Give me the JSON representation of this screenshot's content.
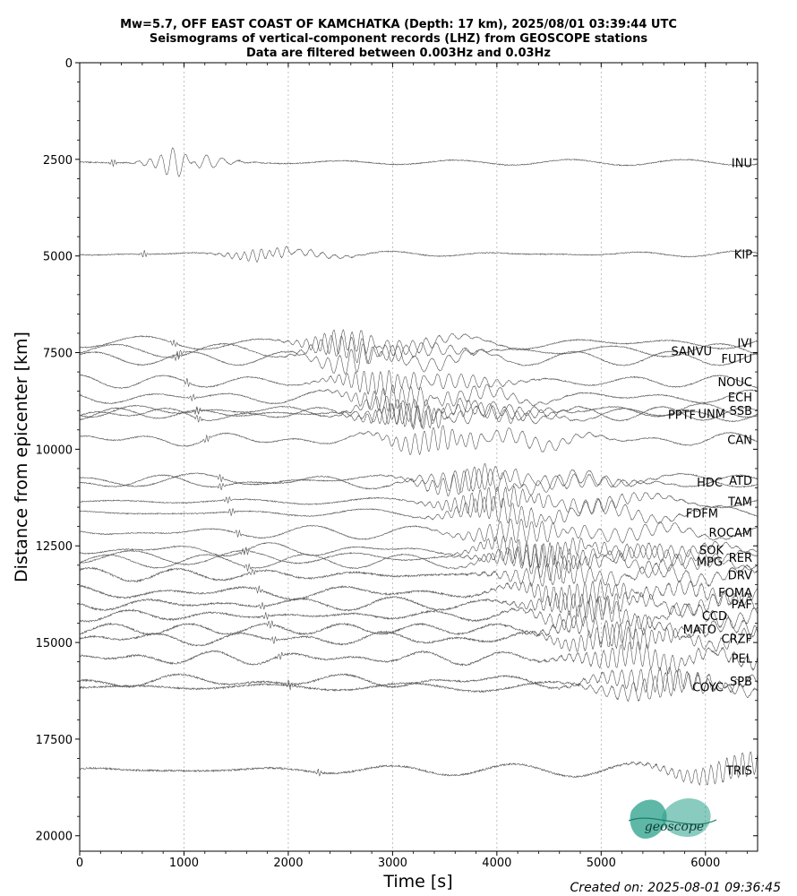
{
  "chart_data": {
    "type": "line",
    "title_lines": [
      "Mw=5.7, OFF EAST COAST OF KAMCHATKA (Depth: 17 km), 2025/08/01 03:39:44 UTC",
      "Seismograms of vertical-component records (LHZ) from GEOSCOPE stations",
      "Data are filtered between 0.003Hz and 0.03Hz"
    ],
    "xlabel": "Time [s]",
    "ylabel": "Distance from epicenter [km]",
    "xlim": [
      0,
      6500
    ],
    "ylim": [
      20400,
      0
    ],
    "y_inverted": true,
    "xticks": [
      0,
      1000,
      2000,
      3000,
      4000,
      5000,
      6000
    ],
    "yticks": [
      0,
      2500,
      5000,
      7500,
      10000,
      12500,
      15000,
      17500,
      20000
    ],
    "vertical_grid": "dotted at major x ticks",
    "trace_color": "#555555",
    "series": [
      {
        "name": "INU",
        "distance": 2580
      },
      {
        "name": "KIP",
        "distance": 4950
      },
      {
        "name": "IVI",
        "distance": 7250
      },
      {
        "name": "SANVU",
        "distance": 7450
      },
      {
        "name": "FUTU",
        "distance": 7650
      },
      {
        "name": "NOUC",
        "distance": 8250
      },
      {
        "name": "ECH",
        "distance": 8650
      },
      {
        "name": "SSB",
        "distance": 9000
      },
      {
        "name": "UNM",
        "distance": 9080
      },
      {
        "name": "PPTF",
        "distance": 9100
      },
      {
        "name": "CAN",
        "distance": 9750
      },
      {
        "name": "ATD",
        "distance": 10800
      },
      {
        "name": "HDC",
        "distance": 10850
      },
      {
        "name": "TAM",
        "distance": 11350
      },
      {
        "name": "FDFM",
        "distance": 11650
      },
      {
        "name": "ROCAM",
        "distance": 12150
      },
      {
        "name": "SOK",
        "distance": 12600
      },
      {
        "name": "RER",
        "distance": 12800
      },
      {
        "name": "MPG",
        "distance": 12900
      },
      {
        "name": "DRV",
        "distance": 13250
      },
      {
        "name": "FOMA",
        "distance": 13700
      },
      {
        "name": "PAF",
        "distance": 14000
      },
      {
        "name": "CCD",
        "distance": 14300
      },
      {
        "name": "MATO",
        "distance": 14650
      },
      {
        "name": "CRZF",
        "distance": 14900
      },
      {
        "name": "PEL",
        "distance": 15400
      },
      {
        "name": "SPB",
        "distance": 16000
      },
      {
        "name": "COYC",
        "distance": 16150
      },
      {
        "name": "TRIS",
        "distance": 18300
      }
    ]
  },
  "footer": {
    "created": "Created on: 2025-08-01 09:36:45",
    "logo_text": "geoscope",
    "logo_color": "#2aa08a"
  }
}
